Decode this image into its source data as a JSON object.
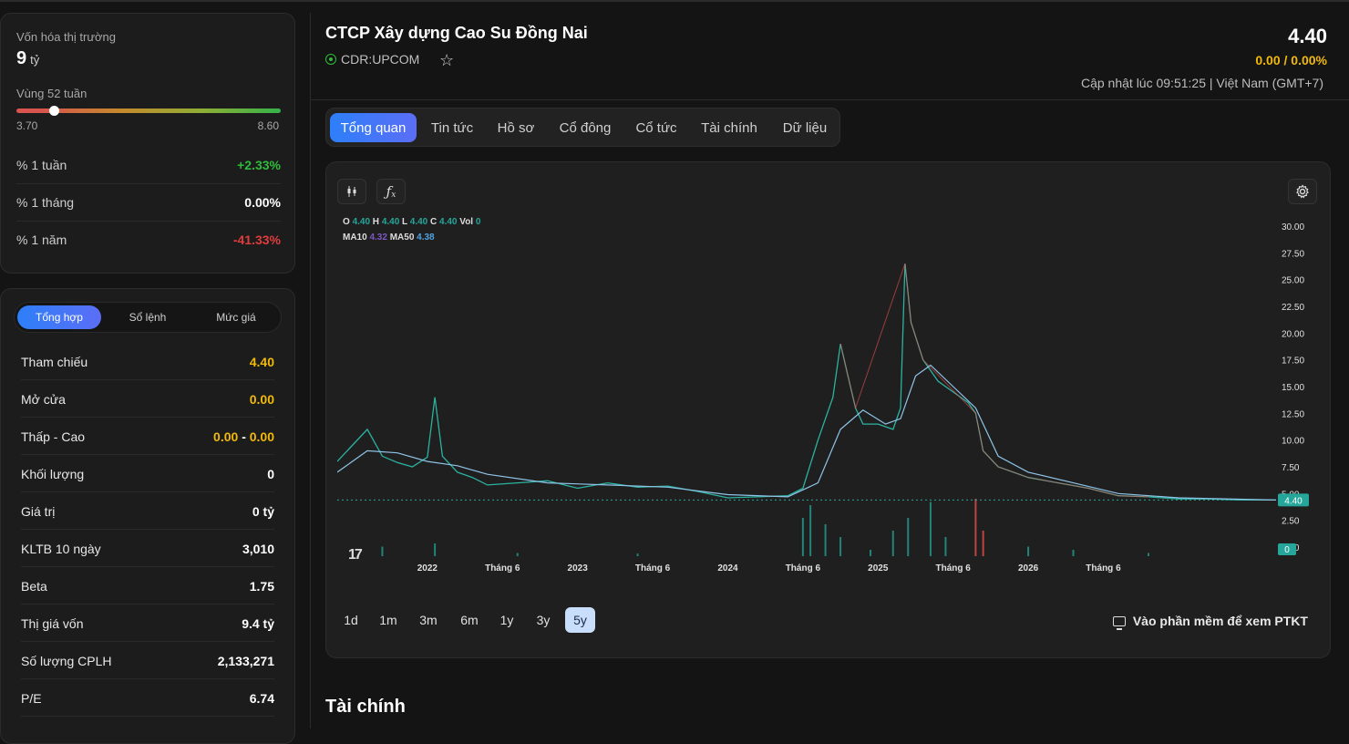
{
  "overview": {
    "market_cap_label": "Vốn hóa thị trường",
    "market_cap_value": "9",
    "market_cap_unit": "tỷ",
    "range_label": "Vùng 52 tuần",
    "range_low": "3.70",
    "range_high": "8.60",
    "range_position": 0.14,
    "perf": [
      {
        "label": "% 1 tuần",
        "value": "+2.33%",
        "tone": "green"
      },
      {
        "label": "% 1 tháng",
        "value": "0.00%",
        "tone": "white"
      },
      {
        "label": "% 1 năm",
        "value": "-41.33%",
        "tone": "red"
      }
    ]
  },
  "trade_panel": {
    "tabs": [
      "Tổng hợp",
      "Sổ lệnh",
      "Mức giá"
    ],
    "active_tab": "Tổng hợp",
    "rows": [
      {
        "label": "Tham chiếu",
        "value": "4.40",
        "tone": "yellow"
      },
      {
        "label": "Mở cửa",
        "value": "0.00",
        "tone": "yellow"
      },
      {
        "label": "Thấp - Cao",
        "value_low": "0.00",
        "value_sep": "-",
        "value_high": "0.00",
        "tone": "yellow"
      },
      {
        "label": "Khối lượng",
        "value": "0",
        "tone": "white"
      },
      {
        "label": "Giá trị",
        "value": "0 tỷ",
        "tone": "white"
      },
      {
        "label": "KLTB 10 ngày",
        "value": "3,010",
        "tone": "white"
      },
      {
        "label": "Beta",
        "value": "1.75",
        "tone": "white"
      },
      {
        "label": "Thị giá vốn",
        "value": "9.4 tỷ",
        "tone": "white"
      },
      {
        "label": "Số lượng CPLH",
        "value": "2,133,271",
        "tone": "white"
      },
      {
        "label": "P/E",
        "value": "6.74",
        "tone": "white"
      }
    ]
  },
  "header": {
    "name": "CTCP Xây dựng Cao Su Đồng Nai",
    "exchange": "CDR:UPCOM",
    "price": "4.40",
    "change": "0.00 / 0.00%",
    "updated": "Cập nhật lúc 09:51:25 | Việt Nam (GMT+7)"
  },
  "nav_tabs": [
    "Tổng quan",
    "Tin tức",
    "Hồ sơ",
    "Cổ đông",
    "Cổ tức",
    "Tài chính",
    "Dữ liệu"
  ],
  "nav_active": "Tổng quan",
  "chart": {
    "legend_ohlc": {
      "O": "4.40",
      "H": "4.40",
      "L": "4.40",
      "C": "4.40",
      "Vol": "0"
    },
    "legend_ma": {
      "MA10": "4.32",
      "MA50": "4.38"
    },
    "ranges": [
      "1d",
      "1m",
      "3m",
      "6m",
      "1y",
      "3y",
      "5y"
    ],
    "active_range": "5y",
    "ptkt_label": "Vào phần mềm để xem PTKT",
    "tv_logo": "17"
  },
  "chart_data": {
    "type": "line",
    "y_ticks": [
      "30.00",
      "27.50",
      "25.00",
      "22.50",
      "20.00",
      "17.50",
      "15.00",
      "12.50",
      "10.00",
      "7.50",
      "5.00",
      "2.50",
      "0.00"
    ],
    "x_ticks": [
      {
        "label": "2022",
        "t": 0.6
      },
      {
        "label": "Tháng 6",
        "t": 1.1
      },
      {
        "label": "2023",
        "t": 1.6
      },
      {
        "label": "Tháng 6",
        "t": 2.1
      },
      {
        "label": "2024",
        "t": 2.6
      },
      {
        "label": "Tháng 6",
        "t": 3.1
      },
      {
        "label": "2025",
        "t": 3.6
      },
      {
        "label": "Tháng 6",
        "t": 4.1
      },
      {
        "label": "2026",
        "t": 4.6
      },
      {
        "label": "Tháng 6",
        "t": 5.1
      }
    ],
    "t_range": [
      0,
      6.25
    ],
    "ylim": [
      0,
      30
    ],
    "last_price_label": "4.40",
    "last_volume_label": "0",
    "price": [
      [
        0.0,
        8.0
      ],
      [
        0.1,
        9.5
      ],
      [
        0.2,
        11.0
      ],
      [
        0.3,
        8.5
      ],
      [
        0.4,
        7.9
      ],
      [
        0.5,
        7.5
      ],
      [
        0.6,
        8.4
      ],
      [
        0.65,
        14.0
      ],
      [
        0.7,
        8.5
      ],
      [
        0.8,
        7.0
      ],
      [
        0.9,
        6.5
      ],
      [
        1.0,
        5.8
      ],
      [
        1.2,
        6.0
      ],
      [
        1.4,
        6.2
      ],
      [
        1.6,
        5.5
      ],
      [
        1.8,
        6.0
      ],
      [
        2.0,
        5.6
      ],
      [
        2.2,
        5.7
      ],
      [
        2.4,
        5.2
      ],
      [
        2.6,
        4.6
      ],
      [
        2.8,
        4.7
      ],
      [
        3.0,
        4.8
      ],
      [
        3.1,
        5.5
      ],
      [
        3.2,
        10.0
      ],
      [
        3.3,
        14.0
      ],
      [
        3.35,
        19.0
      ],
      [
        3.4,
        16.0
      ],
      [
        3.45,
        13.0
      ],
      [
        3.5,
        11.5
      ],
      [
        3.6,
        11.5
      ],
      [
        3.7,
        11.0
      ],
      [
        3.75,
        13.0
      ],
      [
        3.78,
        26.5
      ],
      [
        3.82,
        21.0
      ],
      [
        3.9,
        17.5
      ],
      [
        4.0,
        15.5
      ],
      [
        4.1,
        14.5
      ],
      [
        4.2,
        13.5
      ],
      [
        4.25,
        12.5
      ],
      [
        4.3,
        9.0
      ],
      [
        4.4,
        7.5
      ],
      [
        4.6,
        6.5
      ],
      [
        4.8,
        6.0
      ],
      [
        5.0,
        5.5
      ],
      [
        5.2,
        4.8
      ],
      [
        5.4,
        4.7
      ],
      [
        5.6,
        4.5
      ],
      [
        5.8,
        4.5
      ],
      [
        6.0,
        4.4
      ],
      [
        6.25,
        4.4
      ]
    ],
    "ma": [
      [
        0.0,
        7.0
      ],
      [
        0.2,
        9.0
      ],
      [
        0.4,
        8.8
      ],
      [
        0.6,
        8.0
      ],
      [
        0.8,
        7.6
      ],
      [
        1.0,
        6.8
      ],
      [
        1.4,
        6.0
      ],
      [
        1.8,
        5.8
      ],
      [
        2.2,
        5.6
      ],
      [
        2.6,
        4.9
      ],
      [
        3.0,
        4.7
      ],
      [
        3.2,
        6.0
      ],
      [
        3.35,
        11.0
      ],
      [
        3.5,
        12.8
      ],
      [
        3.65,
        11.5
      ],
      [
        3.75,
        12.0
      ],
      [
        3.85,
        16.0
      ],
      [
        3.95,
        17.0
      ],
      [
        4.1,
        15.0
      ],
      [
        4.25,
        13.0
      ],
      [
        4.4,
        8.5
      ],
      [
        4.6,
        7.0
      ],
      [
        4.9,
        6.0
      ],
      [
        5.2,
        5.0
      ],
      [
        5.6,
        4.6
      ],
      [
        6.25,
        4.4
      ]
    ],
    "volume": [
      [
        0.3,
        0.15
      ],
      [
        0.65,
        0.2
      ],
      [
        1.2,
        0.05
      ],
      [
        2.0,
        0.04
      ],
      [
        3.1,
        0.6
      ],
      [
        3.15,
        0.8
      ],
      [
        3.25,
        0.5
      ],
      [
        3.35,
        0.3
      ],
      [
        3.55,
        0.1
      ],
      [
        3.7,
        0.4
      ],
      [
        3.8,
        0.6
      ],
      [
        3.95,
        0.85
      ],
      [
        4.05,
        0.3
      ],
      [
        4.25,
        0.9
      ],
      [
        4.3,
        0.4
      ],
      [
        4.6,
        0.15
      ],
      [
        4.9,
        0.1
      ],
      [
        5.4,
        0.05
      ]
    ],
    "baseline": 4.4
  },
  "sections": {
    "financial_title": "Tài chính"
  }
}
